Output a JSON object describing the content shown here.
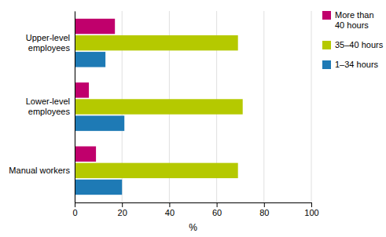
{
  "chart_data": {
    "type": "bar",
    "orientation": "horizontal",
    "categories": [
      "Upper-level\nemployees",
      "Lower-level\nemployees",
      "Manual workers"
    ],
    "series": [
      {
        "name": "More than\n40 hours",
        "color": "#c0006c",
        "values": [
          17,
          6,
          9
        ]
      },
      {
        "name": "35–40 hours",
        "color": "#b5c900",
        "values": [
          69,
          71,
          69
        ]
      },
      {
        "name": "1–34 hours",
        "color": "#1e7ab5",
        "values": [
          13,
          21,
          20
        ]
      }
    ],
    "xlabel": "%",
    "xlim": [
      0,
      100
    ],
    "xticks": [
      0,
      20,
      40,
      60,
      80,
      100
    ],
    "grid": true,
    "legend": "upper right"
  }
}
